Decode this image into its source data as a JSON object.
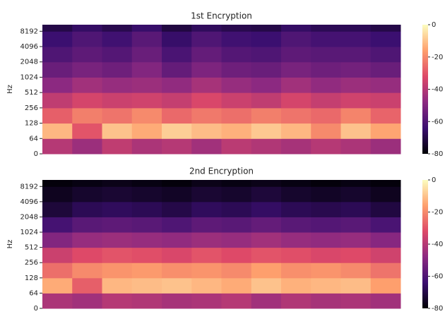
{
  "chart_data": [
    {
      "type": "spectrogram",
      "title": "1st Encryption",
      "ylabel": "Hz",
      "yscale": "symlog",
      "linthresh": 64,
      "ylim": [
        0,
        11025
      ],
      "yticks": [
        0,
        64,
        128,
        256,
        512,
        1024,
        2048,
        4096,
        8192
      ],
      "y_edges": [
        0,
        64,
        128,
        256,
        512,
        1024,
        2048,
        4096,
        8192,
        11025
      ],
      "clim": [
        -80,
        0
      ],
      "cticks": [
        0,
        -20,
        -40,
        -60,
        -80
      ],
      "colormap": [
        "#000004",
        "#3b0f70",
        "#8c2981",
        "#de4968",
        "#fe9f6d",
        "#fcfdbf"
      ],
      "values": [
        [
          -40,
          -45,
          -38,
          -42,
          -40,
          -44,
          -39,
          -41,
          -43,
          -40,
          -42,
          -45
        ],
        [
          -12,
          -30,
          -10,
          -14,
          -8,
          -11,
          -13,
          -9,
          -12,
          -20,
          -10,
          -15
        ],
        [
          -28,
          -22,
          -24,
          -20,
          -26,
          -23,
          -25,
          -22,
          -24,
          -26,
          -21,
          -27
        ],
        [
          -38,
          -34,
          -36,
          -35,
          -37,
          -33,
          -36,
          -38,
          -34,
          -37,
          -35,
          -36
        ],
        [
          -48,
          -44,
          -46,
          -45,
          -47,
          -43,
          -46,
          -48,
          -44,
          -47,
          -45,
          -46
        ],
        [
          -55,
          -52,
          -54,
          -50,
          -56,
          -51,
          -54,
          -55,
          -52,
          -54,
          -53,
          -55
        ],
        [
          -60,
          -57,
          -59,
          -55,
          -61,
          -56,
          -59,
          -60,
          -57,
          -58,
          -58,
          -60
        ],
        [
          -64,
          -60,
          -63,
          -58,
          -65,
          -60,
          -63,
          -64,
          -60,
          -62,
          -62,
          -64
        ],
        [
          -70,
          -66,
          -69,
          -65,
          -71,
          -67,
          -69,
          -70,
          -66,
          -68,
          -68,
          -70
        ]
      ]
    },
    {
      "type": "spectrogram",
      "title": "2nd Encryption",
      "ylabel": "Hz",
      "yscale": "symlog",
      "linthresh": 64,
      "ylim": [
        0,
        11025
      ],
      "yticks": [
        0,
        64,
        128,
        256,
        512,
        1024,
        2048,
        4096,
        8192
      ],
      "y_edges": [
        0,
        64,
        128,
        256,
        512,
        1024,
        2048,
        4096,
        8192,
        11025
      ],
      "clim": [
        -80,
        0
      ],
      "cticks": [
        0,
        -20,
        -40,
        -60,
        -80
      ],
      "colormap": [
        "#000004",
        "#3b0f70",
        "#8c2981",
        "#de4968",
        "#fe9f6d",
        "#fcfdbf"
      ],
      "values": [
        [
          -42,
          -44,
          -40,
          -41,
          -43,
          -42,
          -40,
          -44,
          -41,
          -43,
          -42,
          -44
        ],
        [
          -14,
          -28,
          -12,
          -11,
          -10,
          -12,
          -14,
          -10,
          -13,
          -12,
          -11,
          -16
        ],
        [
          -25,
          -20,
          -18,
          -17,
          -19,
          -18,
          -20,
          -16,
          -19,
          -18,
          -20,
          -24
        ],
        [
          -36,
          -32,
          -30,
          -31,
          -33,
          -30,
          -32,
          -30,
          -31,
          -33,
          -32,
          -35
        ],
        [
          -50,
          -46,
          -45,
          -46,
          -47,
          -45,
          -46,
          -44,
          -46,
          -47,
          -46,
          -49
        ],
        [
          -62,
          -58,
          -57,
          -58,
          -60,
          -57,
          -58,
          -56,
          -58,
          -59,
          -58,
          -61
        ],
        [
          -72,
          -68,
          -67,
          -68,
          -70,
          -67,
          -68,
          -66,
          -68,
          -69,
          -68,
          -71
        ],
        [
          -76,
          -74,
          -73,
          -74,
          -75,
          -73,
          -74,
          -72,
          -74,
          -75,
          -74,
          -76
        ],
        [
          -79,
          -78,
          -77,
          -78,
          -79,
          -77,
          -78,
          -77,
          -78,
          -79,
          -78,
          -79
        ]
      ]
    }
  ]
}
